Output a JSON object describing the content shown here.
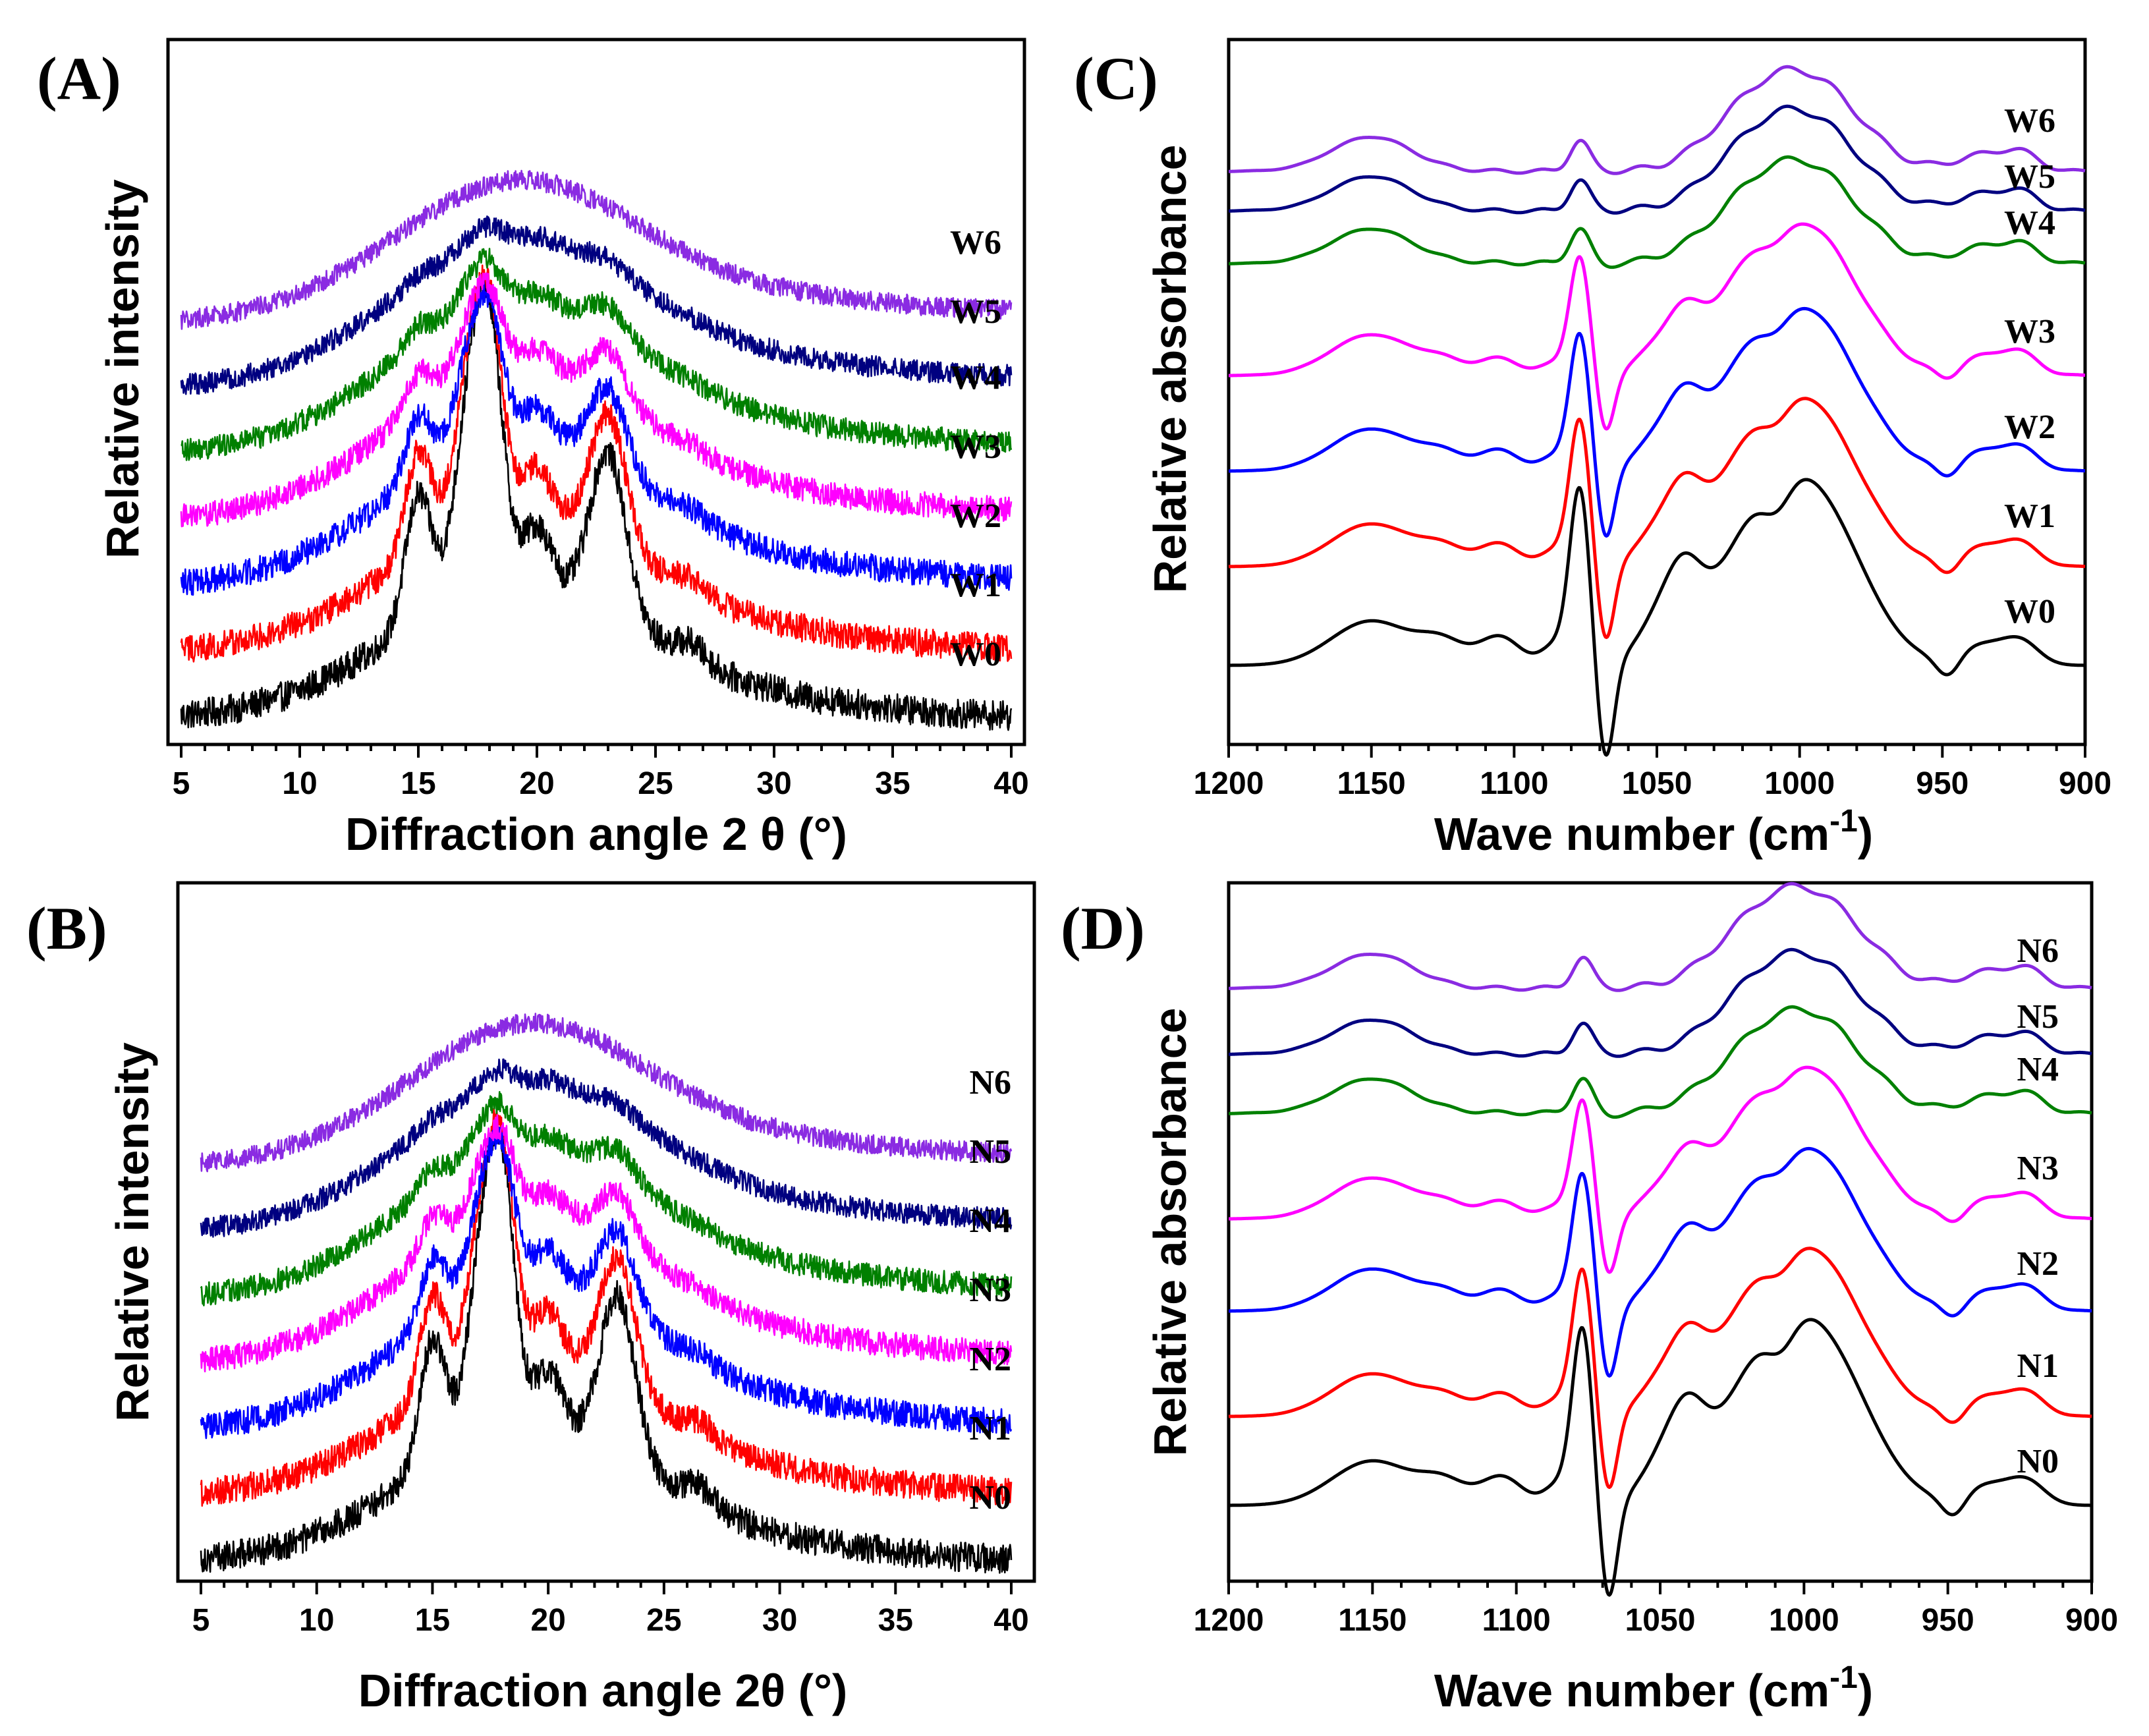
{
  "chart_data": [
    {
      "id": "A",
      "panel_label": "(A)",
      "type": "line",
      "kind": "xrd",
      "xlabel": "Diffraction angle 2 θ (°)",
      "ylabel": "Relative intensity",
      "xlim": [
        5,
        40
      ],
      "xticks": [
        5,
        10,
        15,
        20,
        25,
        30,
        35,
        40
      ],
      "series": [
        {
          "name": "W0",
          "color": "#000000",
          "crystallinity": 1.0
        },
        {
          "name": "W1",
          "color": "#ff0000",
          "crystallinity": 0.85
        },
        {
          "name": "W2",
          "color": "#0000ff",
          "crystallinity": 0.55
        },
        {
          "name": "W3",
          "color": "#ff00ff",
          "crystallinity": 0.35
        },
        {
          "name": "W4",
          "color": "#008000",
          "crystallinity": 0.2
        },
        {
          "name": "W5",
          "color": "#000080",
          "crystallinity": 0.08
        },
        {
          "name": "W6",
          "color": "#8a2be2",
          "crystallinity": 0.0
        }
      ]
    },
    {
      "id": "B",
      "panel_label": "(B)",
      "type": "line",
      "kind": "xrd",
      "xlabel": "Diffraction angle 2θ (°)",
      "ylabel": "Relative intensity",
      "xlim": [
        5,
        40
      ],
      "xticks": [
        5,
        10,
        15,
        20,
        25,
        30,
        35,
        40
      ],
      "series": [
        {
          "name": "N0",
          "color": "#000000",
          "crystallinity": 1.0
        },
        {
          "name": "N1",
          "color": "#ff0000",
          "crystallinity": 0.85
        },
        {
          "name": "N2",
          "color": "#0000ff",
          "crystallinity": 0.55
        },
        {
          "name": "N3",
          "color": "#ff00ff",
          "crystallinity": 0.35
        },
        {
          "name": "N4",
          "color": "#008000",
          "crystallinity": 0.2
        },
        {
          "name": "N5",
          "color": "#000080",
          "crystallinity": 0.08
        },
        {
          "name": "N6",
          "color": "#8a2be2",
          "crystallinity": 0.0
        }
      ]
    },
    {
      "id": "C",
      "panel_label": "(C)",
      "type": "line",
      "kind": "ftir",
      "xlabel": "Wave number (cm",
      "xlabel_sup": "-1",
      "xlabel_end": ")",
      "ylabel": "Relative absorbance",
      "xlim": [
        1200,
        900
      ],
      "xticks": [
        1200,
        1150,
        1100,
        1050,
        1000,
        950,
        900
      ],
      "series": [
        {
          "name": "W0",
          "color": "#000000",
          "order": 1.0
        },
        {
          "name": "W1",
          "color": "#ff0000",
          "order": 0.85
        },
        {
          "name": "W2",
          "color": "#0000ff",
          "order": 0.8
        },
        {
          "name": "W3",
          "color": "#ff00ff",
          "order": 0.7
        },
        {
          "name": "W4",
          "color": "#008000",
          "order": 0.18
        },
        {
          "name": "W5",
          "color": "#000080",
          "order": 0.12
        },
        {
          "name": "W6",
          "color": "#8a2be2",
          "order": 0.1
        }
      ]
    },
    {
      "id": "D",
      "panel_label": "(D)",
      "type": "line",
      "kind": "ftir",
      "xlabel": "Wave number (cm",
      "xlabel_sup": "-1",
      "xlabel_end": ")",
      "ylabel": "Relative absorbance",
      "xlim": [
        1200,
        900
      ],
      "xticks": [
        1200,
        1150,
        1100,
        1050,
        1000,
        950,
        900
      ],
      "series": [
        {
          "name": "N0",
          "color": "#000000",
          "order": 1.0
        },
        {
          "name": "N1",
          "color": "#ff0000",
          "order": 0.85
        },
        {
          "name": "N2",
          "color": "#0000ff",
          "order": 0.8
        },
        {
          "name": "N3",
          "color": "#ff00ff",
          "order": 0.7
        },
        {
          "name": "N4",
          "color": "#008000",
          "order": 0.18
        },
        {
          "name": "N5",
          "color": "#000080",
          "order": 0.12
        },
        {
          "name": "N6",
          "color": "#8a2be2",
          "order": 0.1
        }
      ]
    }
  ]
}
